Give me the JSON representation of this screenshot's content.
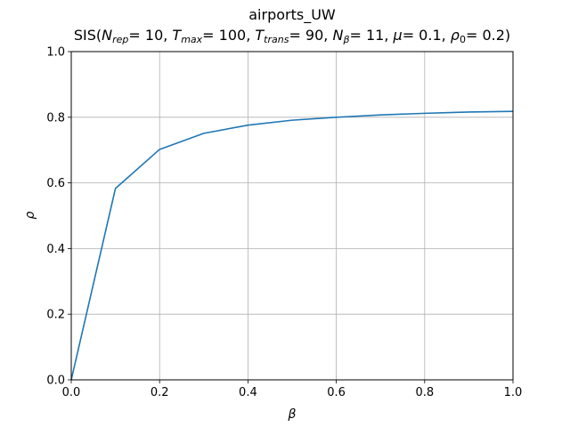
{
  "chart_data": {
    "type": "line",
    "title": "airports_UW",
    "subtitle_parts": {
      "prefix": "SIS(",
      "n_rep": "N",
      "n_rep_sub": "rep",
      "n_rep_val": "= 10, ",
      "t_max": "T",
      "t_max_sub": "max",
      "t_max_val": "= 100, ",
      "t_trans": "T",
      "t_trans_sub": "trans",
      "t_trans_val": "= 90, ",
      "n_beta": "N",
      "n_beta_sub": "β",
      "n_beta_val": "= 11, ",
      "mu": "μ",
      "mu_val": "= 0.1, ",
      "rho0": "ρ",
      "rho0_sub": "0",
      "rho0_val": "= 0.2)"
    },
    "xlabel": "β",
    "ylabel": "ρ",
    "xlim": [
      0.0,
      1.0
    ],
    "ylim": [
      0.0,
      1.0
    ],
    "xticks": [
      "0.0",
      "0.2",
      "0.4",
      "0.6",
      "0.8",
      "1.0"
    ],
    "yticks": [
      "0.0",
      "0.2",
      "0.4",
      "0.6",
      "0.8",
      "1.0"
    ],
    "grid": true,
    "series": [
      {
        "color": "#1f77b4",
        "x": [
          0.0,
          0.1,
          0.2,
          0.3,
          0.4,
          0.5,
          0.6,
          0.7,
          0.8,
          0.9,
          1.0
        ],
        "y": [
          0.0,
          0.583,
          0.702,
          0.751,
          0.776,
          0.791,
          0.8,
          0.807,
          0.812,
          0.816,
          0.818
        ]
      }
    ]
  }
}
